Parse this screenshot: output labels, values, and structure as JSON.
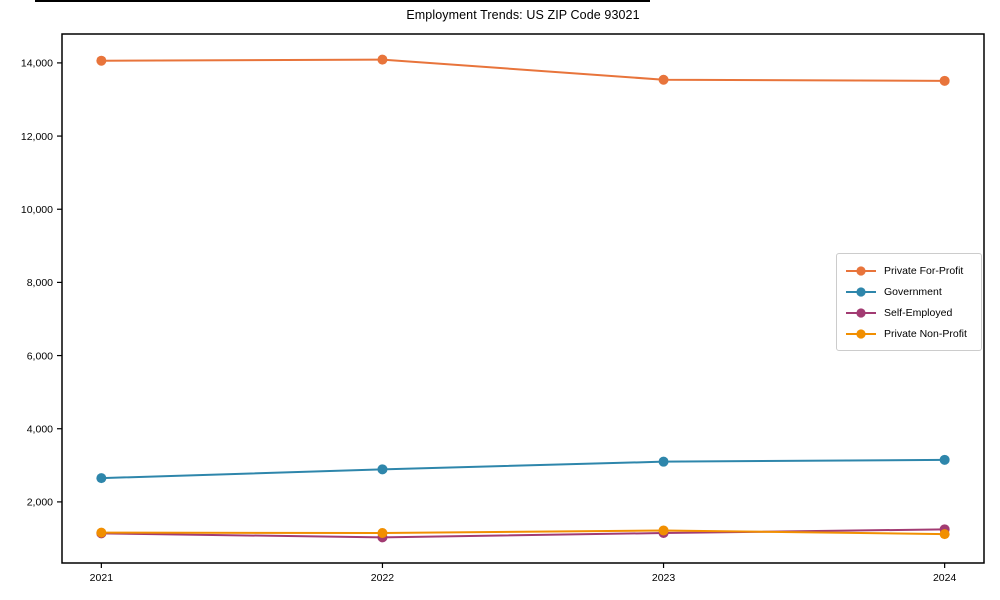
{
  "chart_data": {
    "type": "line",
    "title": "Employment Trends: US ZIP Code 93021",
    "xlabel": "",
    "ylabel": "",
    "x": [
      2021,
      2022,
      2023,
      2024
    ],
    "x_tick_labels": [
      "2021",
      "2022",
      "2023",
      "2024"
    ],
    "series": [
      {
        "name": "Private For-Profit",
        "color": "#E8743B",
        "values": [
          14060,
          14090,
          13540,
          13510
        ]
      },
      {
        "name": "Government",
        "color": "#2E86AB",
        "values": [
          2650,
          2890,
          3100,
          3150
        ]
      },
      {
        "name": "Self-Employed",
        "color": "#A23B72",
        "values": [
          1140,
          1030,
          1150,
          1250
        ]
      },
      {
        "name": "Private Non-Profit",
        "color": "#F18F01",
        "values": [
          1160,
          1150,
          1220,
          1120
        ]
      }
    ],
    "yticks": [
      2000,
      4000,
      6000,
      8000,
      10000,
      12000,
      14000
    ],
    "ytick_labels": [
      "2,000",
      "4,000",
      "6,000",
      "8,000",
      "10,000",
      "12,000",
      "14,000"
    ],
    "ylim": [
      330,
      14790
    ],
    "xlim": [
      2020.86,
      2024.14
    ],
    "grid": false,
    "legend_position": "center right",
    "marker": "circle",
    "frame_color": "#000000"
  }
}
